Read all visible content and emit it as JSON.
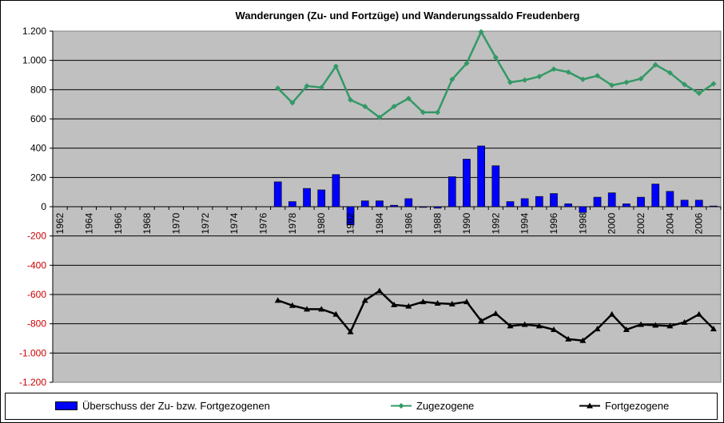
{
  "chart_data": {
    "type": "bar",
    "title": "Wanderungen (Zu- und Fortzüge) und Wanderungssaldo Freudenberg",
    "xlabel": "",
    "ylabel": "",
    "ylim": [
      -1200,
      1200
    ],
    "ystep": 200,
    "y_tick_labels": [
      "1.200",
      "1.000",
      "800",
      "600",
      "400",
      "200",
      "0",
      "-200",
      "-400",
      "-600",
      "-800",
      "-1.000",
      "-1.200"
    ],
    "x_tick_labels": [
      "1962",
      "1964",
      "1966",
      "1968",
      "1970",
      "1972",
      "1974",
      "1976",
      "1978",
      "1980",
      "1982",
      "1984",
      "1986",
      "1988",
      "1990",
      "1992",
      "1994",
      "1996",
      "1998",
      "2000",
      "2002",
      "2004",
      "2006"
    ],
    "categories": [
      1962,
      1963,
      1964,
      1965,
      1966,
      1967,
      1968,
      1969,
      1970,
      1971,
      1972,
      1973,
      1974,
      1975,
      1976,
      1977,
      1978,
      1979,
      1980,
      1981,
      1982,
      1983,
      1984,
      1985,
      1986,
      1987,
      1988,
      1989,
      1990,
      1991,
      1992,
      1993,
      1994,
      1995,
      1996,
      1997,
      1998,
      1999,
      2000,
      2001,
      2002,
      2003,
      2004,
      2005,
      2006,
      2007
    ],
    "grid": true,
    "legend_position": "bottom",
    "series": [
      {
        "name": "Überschuss der Zu- bzw. Fortgezogenen",
        "type": "bar",
        "color": "#0000ff",
        "x": [
          1977,
          1978,
          1979,
          1980,
          1981,
          1982,
          1983,
          1984,
          1985,
          1986,
          1987,
          1988,
          1989,
          1990,
          1991,
          1992,
          1993,
          1994,
          1995,
          1996,
          1997,
          1998,
          1999,
          2000,
          2001,
          2002,
          2003,
          2004,
          2005,
          2006,
          2007
        ],
        "values": [
          170,
          35,
          125,
          115,
          220,
          -125,
          40,
          40,
          10,
          55,
          -5,
          -10,
          205,
          325,
          415,
          280,
          35,
          55,
          70,
          90,
          20,
          -40,
          65,
          95,
          20,
          65,
          155,
          105,
          45,
          45,
          5
        ]
      },
      {
        "name": "Zugezogene",
        "type": "line",
        "color": "#339966",
        "marker": "diamond",
        "x": [
          1977,
          1978,
          1979,
          1980,
          1981,
          1982,
          1983,
          1984,
          1985,
          1986,
          1987,
          1988,
          1989,
          1990,
          1991,
          1992,
          1993,
          1994,
          1995,
          1996,
          1997,
          1998,
          1999,
          2000,
          2001,
          2002,
          2003,
          2004,
          2005,
          2006,
          2007
        ],
        "values": [
          810,
          710,
          825,
          815,
          960,
          730,
          685,
          610,
          685,
          740,
          645,
          645,
          870,
          980,
          1195,
          1020,
          850,
          865,
          890,
          940,
          920,
          870,
          895,
          830,
          850,
          875,
          970,
          915,
          835,
          775,
          840
        ]
      },
      {
        "name": "Fortgezogene",
        "type": "line",
        "color": "#000000",
        "marker": "triangle",
        "x": [
          1977,
          1978,
          1979,
          1980,
          1981,
          1982,
          1983,
          1984,
          1985,
          1986,
          1987,
          1988,
          1989,
          1990,
          1991,
          1992,
          1993,
          1994,
          1995,
          1996,
          1997,
          1998,
          1999,
          2000,
          2001,
          2002,
          2003,
          2004,
          2005,
          2006,
          2007
        ],
        "values": [
          -640,
          -675,
          -700,
          -700,
          -735,
          -855,
          -640,
          -575,
          -670,
          -680,
          -650,
          -660,
          -665,
          -650,
          -780,
          -730,
          -815,
          -805,
          -815,
          -840,
          -905,
          -915,
          -835,
          -735,
          -840,
          -805,
          -810,
          -815,
          -790,
          -735,
          -835
        ]
      }
    ]
  }
}
